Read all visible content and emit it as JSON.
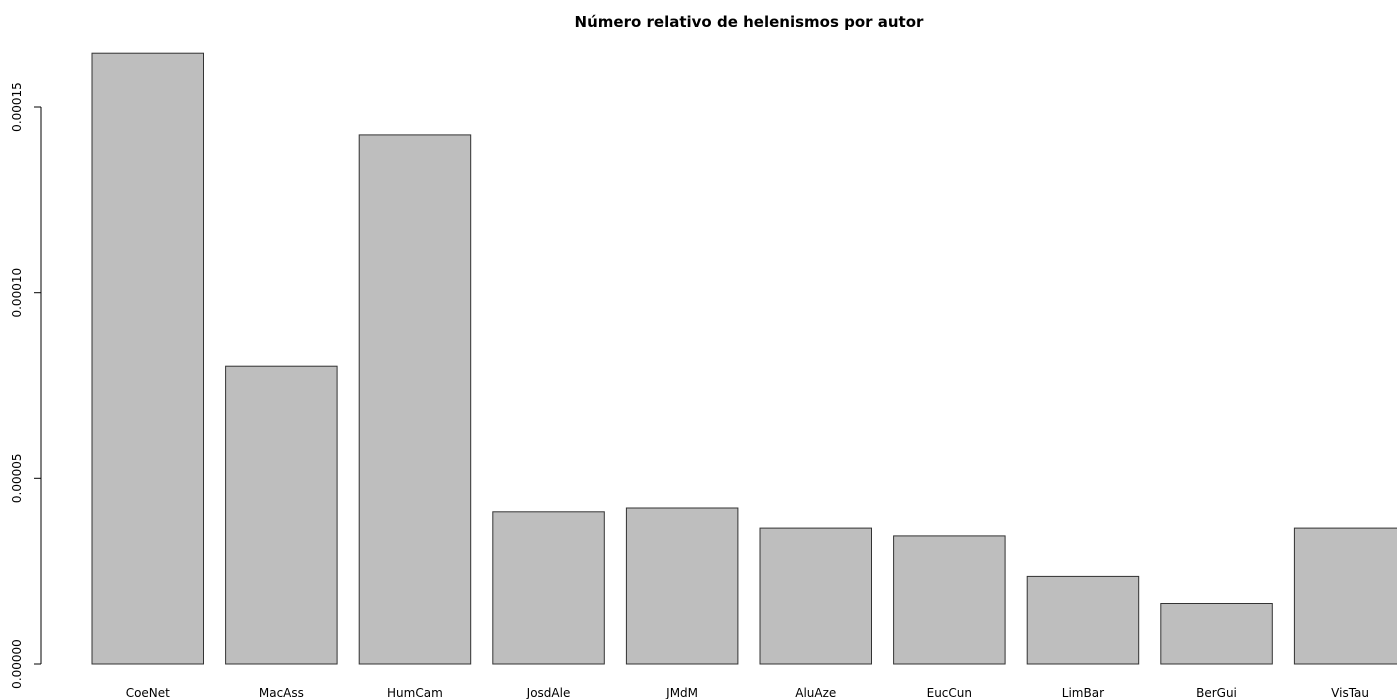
{
  "chart_data": {
    "type": "bar",
    "title": "Número relativo de helenismos por autor",
    "xlabel": "",
    "ylabel": "",
    "categories": [
      "CoeNet",
      "MacAss",
      "HumCam",
      "JosdAle",
      "JMdM",
      "AluAze",
      "EucCun",
      "LimBar",
      "BerGui",
      "VisTau"
    ],
    "values": [
      0.0001645,
      8.02e-05,
      0.0001425,
      4.1e-05,
      4.2e-05,
      3.66e-05,
      3.45e-05,
      2.36e-05,
      1.63e-05,
      3.66e-05
    ],
    "ylim": [
      0,
      0.00015
    ],
    "yticks": [
      0,
      5e-05,
      0.0001,
      0.00015
    ],
    "ytick_labels": [
      "0.00000",
      "0.00005",
      "0.00010",
      "0.00015"
    ],
    "grid": false,
    "legend": "none",
    "colors": {
      "bar_fill": "#bebebe",
      "bar_stroke": "#333333",
      "axis": "#000000"
    }
  }
}
